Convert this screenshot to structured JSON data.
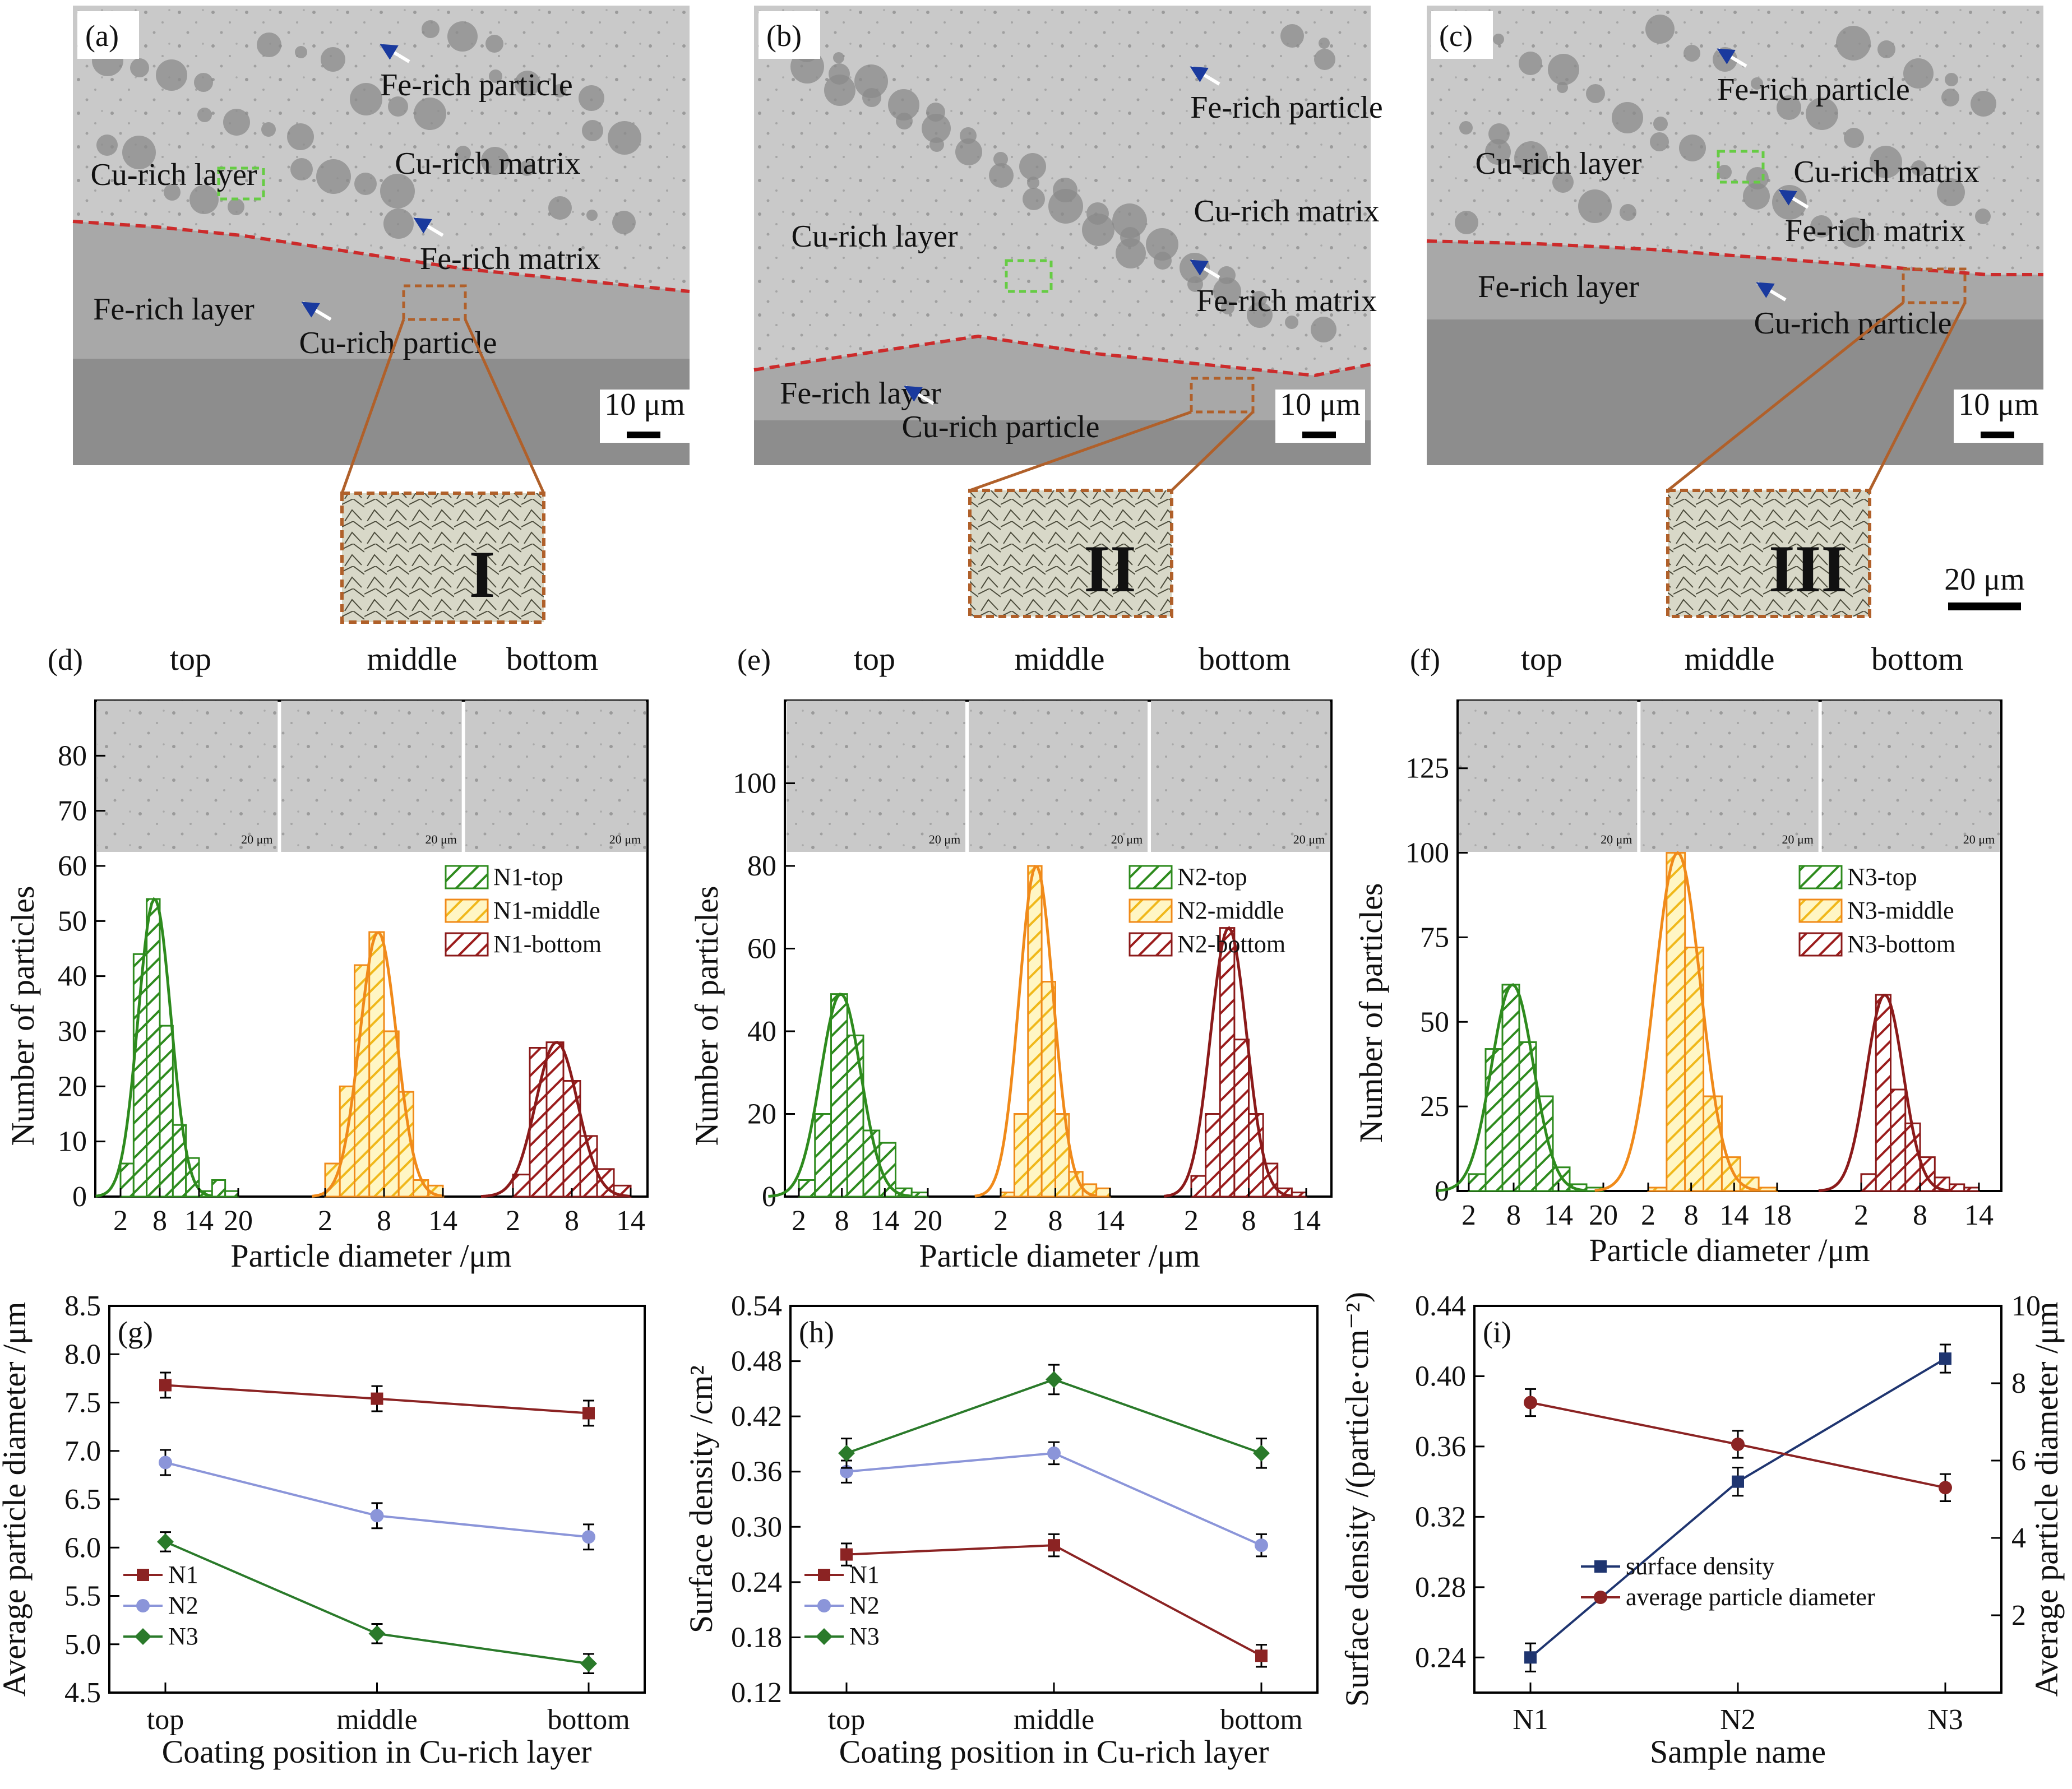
{
  "sem_panels": [
    {
      "label": "(a)",
      "annotations": [
        "Fe-rich particle",
        "Cu-rich layer",
        "Cu-rich matrix",
        "Fe-rich matrix",
        "Fe-rich layer",
        "Cu-rich particle"
      ],
      "scale_bar": "10 μm",
      "inset_numeral": "I"
    },
    {
      "label": "(b)",
      "annotations": [
        "Fe-rich particle",
        "Cu-rich matrix",
        "Cu-rich layer",
        "Fe-rich matrix",
        "Fe-rich layer",
        "Cu-rich particle"
      ],
      "scale_bar": "10 μm",
      "inset_numeral": "II"
    },
    {
      "label": "(c)",
      "annotations": [
        "Fe-rich particle",
        "Cu-rich layer",
        "Cu-rich matrix",
        "Fe-rich matrix",
        "Fe-rich layer",
        "Cu-rich particle"
      ],
      "scale_bar": "10 μm",
      "inset_numeral": "III"
    }
  ],
  "inset_scale_bar": "20 μm",
  "micrograph_scale": "20 μm",
  "colors": {
    "green": "#2e8b1e",
    "orange": "#f08a1a",
    "yellow": "#f5d21a",
    "darkred": "#8b1a1a",
    "n1": "#8b2323",
    "n2": "#8b95d9",
    "n3": "#2a7a2a",
    "surface_density": "#1f3570",
    "interface": "#cc2b2b",
    "arrow": "#1a3a9e",
    "green_box": "#66cc44",
    "inset_frame": "#b0602a"
  },
  "chart_data": [
    {
      "panel": "(d)",
      "type": "bar",
      "positions": [
        "top",
        "middle",
        "bottom"
      ],
      "xlabel": "Particle diameter /μm",
      "ylabel": "Number of particles",
      "yticks": [
        0,
        10,
        20,
        30,
        40,
        50,
        60,
        70,
        80
      ],
      "ylim": [
        0,
        90
      ],
      "group_ticks": [
        [
          "2",
          "8",
          "14",
          "20"
        ],
        [
          "2",
          "8",
          "14"
        ],
        [
          "2",
          "8",
          "14"
        ]
      ],
      "series": [
        {
          "name": "N1-top",
          "values": [
            6,
            44,
            54,
            31,
            13,
            7,
            1,
            3,
            1
          ]
        },
        {
          "name": "N1-middle",
          "values": [
            6,
            20,
            42,
            48,
            30,
            19,
            3,
            2
          ]
        },
        {
          "name": "N1-bottom",
          "values": [
            4,
            27,
            28,
            21,
            11,
            5,
            2
          ]
        }
      ]
    },
    {
      "panel": "(e)",
      "type": "bar",
      "positions": [
        "top",
        "middle",
        "bottom"
      ],
      "xlabel": "Particle diameter /μm",
      "ylabel": "Number of particles",
      "yticks": [
        0,
        20,
        40,
        60,
        80,
        100
      ],
      "ylim": [
        0,
        120
      ],
      "group_ticks": [
        [
          "2",
          "8",
          "14",
          "20"
        ],
        [
          "2",
          "8",
          "14"
        ],
        [
          "2",
          "8",
          "14"
        ]
      ],
      "series": [
        {
          "name": "N2-top",
          "values": [
            4,
            20,
            49,
            39,
            16,
            13,
            2,
            1
          ]
        },
        {
          "name": "N2-middle",
          "values": [
            1,
            20,
            80,
            52,
            20,
            6,
            3,
            2
          ]
        },
        {
          "name": "N2-bottom",
          "values": [
            5,
            20,
            65,
            38,
            20,
            8,
            2,
            1
          ]
        }
      ]
    },
    {
      "panel": "(f)",
      "type": "bar",
      "positions": [
        "top",
        "middle",
        "bottom"
      ],
      "xlabel": "Particle diameter /μm",
      "ylabel": "Number of particles",
      "yticks": [
        0,
        25,
        50,
        75,
        100,
        125
      ],
      "ylim": [
        0,
        145
      ],
      "group_ticks": [
        [
          "2",
          "8",
          "14",
          "20"
        ],
        [
          "2",
          "8",
          "14",
          "18"
        ],
        [
          "2",
          "8",
          "14"
        ]
      ],
      "series": [
        {
          "name": "N3-top",
          "values": [
            5,
            42,
            61,
            44,
            28,
            7,
            2,
            1
          ]
        },
        {
          "name": "N3-middle",
          "values": [
            1,
            100,
            72,
            28,
            10,
            4,
            1
          ]
        },
        {
          "name": "N3-bottom",
          "values": [
            5,
            58,
            30,
            20,
            10,
            4,
            2,
            1
          ]
        }
      ]
    },
    {
      "panel": "(g)",
      "type": "line",
      "categories": [
        "top",
        "middle",
        "bottom"
      ],
      "xlabel": "Coating position in Cu-rich layer",
      "ylabel": "Average particle diameter /μm",
      "ylim": [
        4.5,
        8.5
      ],
      "yticks": [
        "4.5",
        "5.0",
        "5.5",
        "6.0",
        "6.5",
        "7.0",
        "7.5",
        "8.0",
        "8.5"
      ],
      "series": [
        {
          "name": "N1",
          "values": [
            7.68,
            7.54,
            7.39
          ],
          "error": 0.13
        },
        {
          "name": "N2",
          "values": [
            6.88,
            6.33,
            6.11
          ],
          "error": 0.13
        },
        {
          "name": "N3",
          "values": [
            6.06,
            5.11,
            4.8
          ],
          "error": 0.1
        }
      ]
    },
    {
      "panel": "(h)",
      "type": "line",
      "categories": [
        "top",
        "middle",
        "bottom"
      ],
      "xlabel": "Coating position in Cu-rich layer",
      "ylabel": "Surface density /cm²",
      "ylim": [
        0.12,
        0.54
      ],
      "yticks": [
        "0.12",
        "0.18",
        "0.24",
        "0.30",
        "0.36",
        "0.42",
        "0.48",
        "0.54"
      ],
      "series": [
        {
          "name": "N1",
          "values": [
            0.27,
            0.28,
            0.16
          ],
          "error": 0.012
        },
        {
          "name": "N2",
          "values": [
            0.36,
            0.38,
            0.28
          ],
          "error": 0.012
        },
        {
          "name": "N3",
          "values": [
            0.38,
            0.46,
            0.38
          ],
          "error": 0.016
        }
      ]
    },
    {
      "panel": "(i)",
      "type": "line",
      "categories": [
        "N1",
        "N2",
        "N3"
      ],
      "xlabel": "Sample name",
      "ylabel_left": "Surface density /(particle·cm⁻²)",
      "ylabel_right": "Average particle diameter /μm",
      "ylim_left": [
        0.22,
        0.44
      ],
      "yticks_left": [
        "0.24",
        "0.28",
        "0.32",
        "0.36",
        "0.40",
        "0.44"
      ],
      "ylim_right": [
        0,
        10
      ],
      "yticks_right": [
        "2",
        "4",
        "6",
        "8",
        "10"
      ],
      "series": [
        {
          "name": "surface density",
          "axis": "left",
          "values": [
            0.24,
            0.34,
            0.41
          ],
          "error": 0.008
        },
        {
          "name": "average particle diameter",
          "axis": "right",
          "values": [
            7.5,
            6.42,
            5.3
          ],
          "error": 0.35
        }
      ]
    }
  ]
}
